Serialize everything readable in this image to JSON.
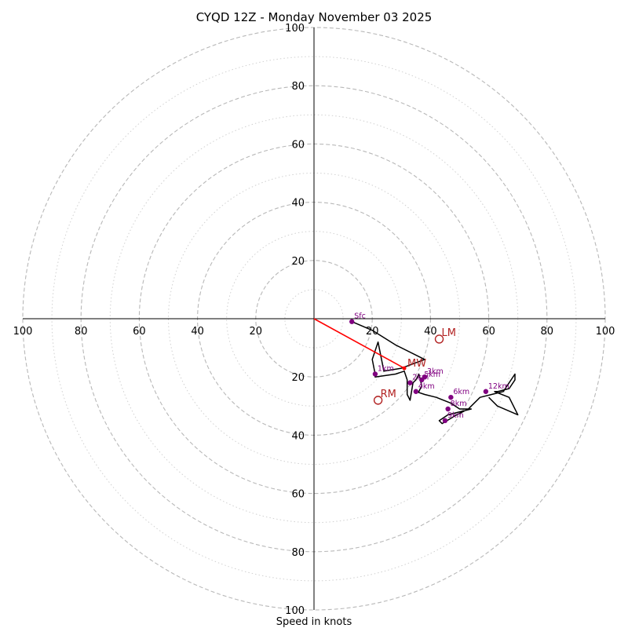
{
  "chart_data": {
    "type": "scatter",
    "subtype": "hodograph",
    "title": "CYQD 12Z - Monday November 03 2025",
    "xlabel": "Speed in knots",
    "units": "knots",
    "axis_range": [
      -100,
      100
    ],
    "ring_major": [
      20,
      40,
      60,
      80,
      100
    ],
    "ring_minor": [
      10,
      30,
      50,
      70,
      90
    ],
    "tick_labels": {
      "top": [
        "20",
        "40",
        "60",
        "80",
        "100"
      ],
      "bottom": [
        "20",
        "40",
        "60",
        "80",
        "100"
      ],
      "left": [
        "100",
        "80",
        "60",
        "40",
        "20"
      ],
      "right": [
        "20",
        "40",
        "60",
        "80",
        "100"
      ]
    },
    "hodograph_trace": [
      [
        13,
        -1
      ],
      [
        20,
        -4
      ],
      [
        28,
        -9
      ],
      [
        38,
        -14
      ],
      [
        30,
        -17
      ],
      [
        24,
        -18
      ],
      [
        22,
        -8
      ],
      [
        21,
        -11
      ],
      [
        20,
        -14
      ],
      [
        21,
        -19
      ],
      [
        21,
        -20
      ],
      [
        28,
        -19
      ],
      [
        31,
        -18
      ],
      [
        32,
        -21
      ],
      [
        32,
        -26
      ],
      [
        33,
        -28
      ],
      [
        34,
        -22
      ],
      [
        35,
        -21
      ],
      [
        36,
        -19
      ],
      [
        37,
        -23
      ],
      [
        36,
        -25
      ],
      [
        35,
        -25
      ],
      [
        38,
        -26
      ],
      [
        42,
        -27
      ],
      [
        47,
        -29
      ],
      [
        50,
        -31
      ],
      [
        54,
        -31
      ],
      [
        46,
        -33
      ],
      [
        43,
        -35
      ],
      [
        44,
        -36
      ],
      [
        49,
        -33
      ],
      [
        53,
        -31
      ],
      [
        54,
        -30
      ],
      [
        57,
        -27
      ],
      [
        61,
        -26
      ],
      [
        65,
        -25
      ],
      [
        69,
        -19
      ],
      [
        69,
        -21
      ],
      [
        67,
        -24
      ],
      [
        63,
        -25
      ],
      [
        62,
        -25
      ],
      [
        67,
        -27
      ],
      [
        70,
        -33
      ],
      [
        63,
        -30
      ],
      [
        60,
        -27
      ]
    ],
    "height_markers": [
      {
        "label": "Sfc",
        "u": 13,
        "v": -1
      },
      {
        "label": "1km",
        "u": 21,
        "v": -19
      },
      {
        "label": "3km",
        "u": 38,
        "v": -20
      },
      {
        "label": "5km",
        "u": 37,
        "v": -21
      },
      {
        "label": "2km",
        "u": 33,
        "v": -22
      },
      {
        "label": "4km",
        "u": 35,
        "v": -25
      },
      {
        "label": "6km",
        "u": 47,
        "v": -27
      },
      {
        "label": "12km",
        "u": 59,
        "v": -25
      },
      {
        "label": "8km",
        "u": 46,
        "v": -31
      },
      {
        "label": "9km",
        "u": 45,
        "v": -35
      }
    ],
    "storm_motion": {
      "mean_wind": {
        "label": "MW",
        "u": 31,
        "v": -17
      },
      "left_mover": {
        "label": "LM",
        "u": 43,
        "v": -7
      },
      "right_mover": {
        "label": "RM",
        "u": 22,
        "v": -28
      }
    },
    "colors": {
      "trace": "#000000",
      "markers": "#800080",
      "storm_motion": "#b22222",
      "shear_vector": "#ff0000",
      "ring": "#b8b8b8",
      "ring_minor": "#d0d0d0"
    }
  }
}
